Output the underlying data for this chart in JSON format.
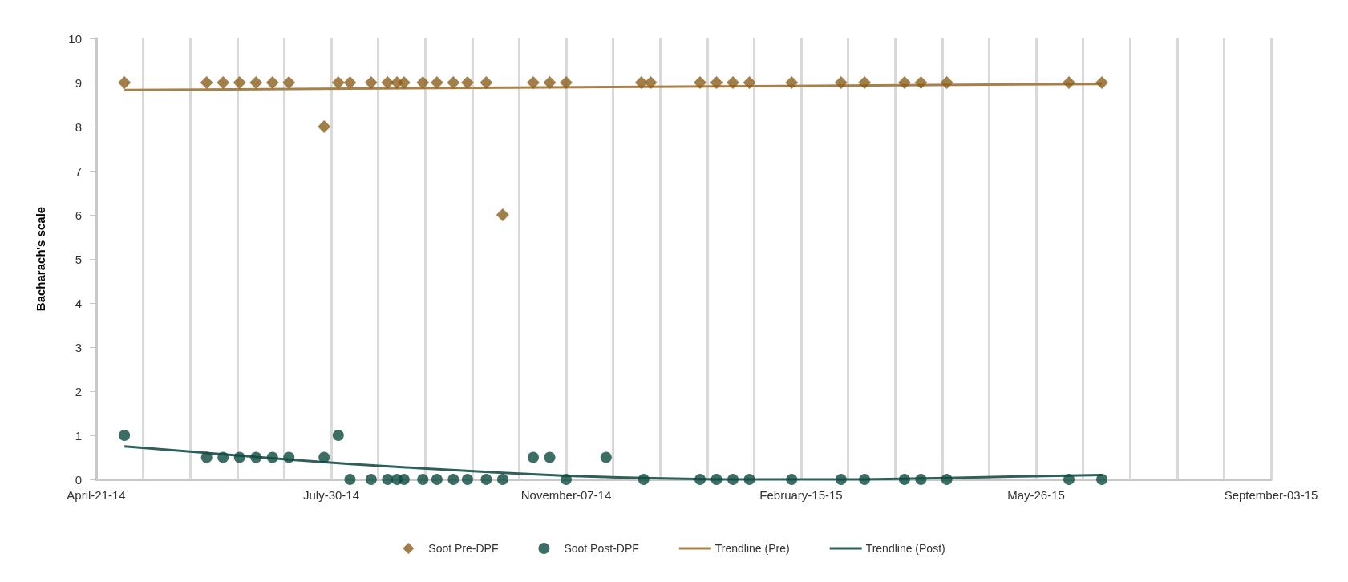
{
  "chart_data": {
    "type": "scatter",
    "ylabel": "Bacharach's scale",
    "ylim": [
      0,
      10
    ],
    "yticks": [
      0,
      1,
      2,
      3,
      4,
      5,
      6,
      7,
      8,
      9,
      10
    ],
    "xlim": [
      "2014-04-21",
      "2015-09-03"
    ],
    "xticks": [
      {
        "value": "2014-04-21",
        "label": "April-21-14"
      },
      {
        "value": "2014-05-11",
        "label": null
      },
      {
        "value": "2014-05-31",
        "label": null
      },
      {
        "value": "2014-06-20",
        "label": null
      },
      {
        "value": "2014-07-10",
        "label": null
      },
      {
        "value": "2014-07-30",
        "label": "July-30-14"
      },
      {
        "value": "2014-08-19",
        "label": null
      },
      {
        "value": "2014-09-08",
        "label": null
      },
      {
        "value": "2014-09-28",
        "label": null
      },
      {
        "value": "2014-10-18",
        "label": null
      },
      {
        "value": "2014-11-07",
        "label": "November-07-14"
      },
      {
        "value": "2014-11-27",
        "label": null
      },
      {
        "value": "2014-12-17",
        "label": null
      },
      {
        "value": "2015-01-06",
        "label": null
      },
      {
        "value": "2015-01-26",
        "label": null
      },
      {
        "value": "2015-02-15",
        "label": "February-15-15"
      },
      {
        "value": "2015-03-07",
        "label": null
      },
      {
        "value": "2015-03-27",
        "label": null
      },
      {
        "value": "2015-04-16",
        "label": null
      },
      {
        "value": "2015-05-06",
        "label": null
      },
      {
        "value": "2015-05-26",
        "label": "May-26-15"
      },
      {
        "value": "2015-06-15",
        "label": null
      },
      {
        "value": "2015-07-05",
        "label": null
      },
      {
        "value": "2015-07-25",
        "label": null
      },
      {
        "value": "2015-08-14",
        "label": null
      },
      {
        "value": "2015-09-03",
        "label": "September-03-15"
      }
    ],
    "grid": "x",
    "legend": "bottom",
    "series": [
      {
        "name": "Soot Pre-DPF",
        "marker": "diamond",
        "color": "#8b5e1a",
        "x": [
          "2014-05-03",
          "2014-06-07",
          "2014-06-14",
          "2014-06-21",
          "2014-06-28",
          "2014-07-05",
          "2014-07-12",
          "2014-07-27",
          "2014-08-02",
          "2014-08-07",
          "2014-08-16",
          "2014-08-23",
          "2014-08-27",
          "2014-08-30",
          "2014-09-07",
          "2014-09-13",
          "2014-09-20",
          "2014-09-26",
          "2014-10-04",
          "2014-10-11",
          "2014-10-24",
          "2014-10-31",
          "2014-11-07",
          "2014-12-09",
          "2014-12-13",
          "2015-01-03",
          "2015-01-10",
          "2015-01-17",
          "2015-01-24",
          "2015-02-11",
          "2015-03-04",
          "2015-03-14",
          "2015-03-31",
          "2015-04-07",
          "2015-04-18",
          "2015-06-09",
          "2015-06-23"
        ],
        "values": [
          9,
          9,
          9,
          9,
          9,
          9,
          9,
          8,
          9,
          9,
          9,
          9,
          9,
          9,
          9,
          9,
          9,
          9,
          9,
          6,
          9,
          9,
          9,
          9,
          9,
          9,
          9,
          9,
          9,
          9,
          9,
          9,
          9,
          9,
          9,
          9,
          9
        ]
      },
      {
        "name": "Soot Post-DPF",
        "marker": "circle",
        "color": "#0d4a3f",
        "x": [
          "2014-05-03",
          "2014-06-07",
          "2014-06-14",
          "2014-06-21",
          "2014-06-28",
          "2014-07-05",
          "2014-07-12",
          "2014-07-27",
          "2014-08-02",
          "2014-08-07",
          "2014-08-16",
          "2014-08-23",
          "2014-08-27",
          "2014-08-30",
          "2014-09-07",
          "2014-09-13",
          "2014-09-20",
          "2014-09-26",
          "2014-10-04",
          "2014-10-11",
          "2014-10-24",
          "2014-10-31",
          "2014-11-07",
          "2014-11-24",
          "2014-12-10",
          "2015-01-03",
          "2015-01-10",
          "2015-01-17",
          "2015-01-24",
          "2015-02-11",
          "2015-03-04",
          "2015-03-14",
          "2015-03-31",
          "2015-04-07",
          "2015-04-18",
          "2015-06-09",
          "2015-06-23"
        ],
        "values": [
          1,
          0.5,
          0.5,
          0.5,
          0.5,
          0.5,
          0.5,
          0.5,
          1,
          0,
          0,
          0,
          0,
          0,
          0,
          0,
          0,
          0,
          0,
          0,
          0.5,
          0.5,
          0,
          0.5,
          0,
          0,
          0,
          0,
          0,
          0,
          0,
          0,
          0,
          0,
          0,
          0,
          0
        ]
      },
      {
        "name": "Trendline (Pre)",
        "type": "line",
        "marker": "none",
        "color": "#a8804a",
        "x": [
          "2014-05-03",
          "2015-06-23"
        ],
        "values": [
          8.83,
          8.97
        ]
      },
      {
        "name": "Trendline (Post)",
        "type": "line",
        "marker": "none",
        "color": "#2f5f5a",
        "x": [
          "2014-05-03",
          "2014-06-07",
          "2014-07-12",
          "2014-08-07",
          "2014-09-07",
          "2014-10-11",
          "2014-11-07",
          "2014-12-10",
          "2015-01-10",
          "2015-03-14",
          "2015-04-18",
          "2015-05-20",
          "2015-06-23"
        ],
        "values": [
          0.75,
          0.6,
          0.45,
          0.35,
          0.25,
          0.15,
          0.08,
          0.03,
          0,
          0,
          0.03,
          0.07,
          0.1
        ]
      }
    ]
  }
}
